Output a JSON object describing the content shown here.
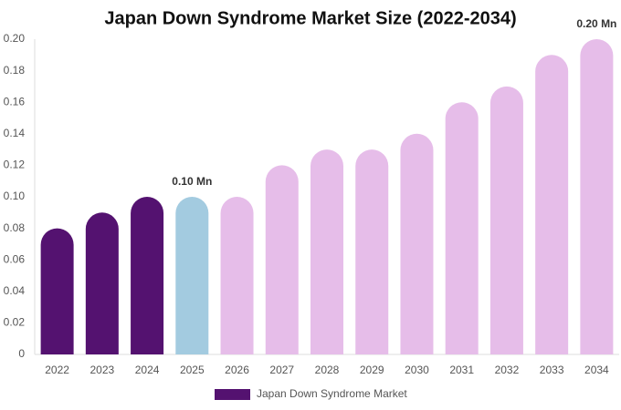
{
  "chart_data": {
    "type": "bar",
    "title": "Japan Down Syndrome Market Size (2022-2034)",
    "categories": [
      "2022",
      "2023",
      "2024",
      "2025",
      "2026",
      "2027",
      "2028",
      "2029",
      "2030",
      "2031",
      "2032",
      "2033",
      "2034"
    ],
    "series": [
      {
        "name": "Japan Down Syndrome Market",
        "color": "#541270",
        "colors": [
          "#541270",
          "#541270",
          "#541270",
          "#a3cbe0",
          "#e6bde9",
          "#e6bde9",
          "#e6bde9",
          "#e6bde9",
          "#e6bde9",
          "#e6bde9",
          "#e6bde9",
          "#e6bde9",
          "#e6bde9"
        ],
        "values": [
          0.08,
          0.09,
          0.1,
          0.1,
          0.1,
          0.12,
          0.13,
          0.13,
          0.14,
          0.16,
          0.17,
          0.19,
          0.2
        ],
        "value_labels": [
          null,
          null,
          null,
          "0.10 Mn",
          null,
          null,
          null,
          null,
          null,
          null,
          null,
          null,
          "0.20 Mn"
        ]
      }
    ],
    "ylim": [
      0,
      0.2
    ],
    "yticks": [
      0,
      0.02,
      0.04,
      0.06,
      0.08,
      {
        "value": 0.1,
        "label": "0.10"
      },
      0.12,
      0.14,
      0.16,
      0.18,
      {
        "value": 0.2,
        "label": "0.20"
      }
    ],
    "grid": false,
    "legend": "bottom"
  }
}
